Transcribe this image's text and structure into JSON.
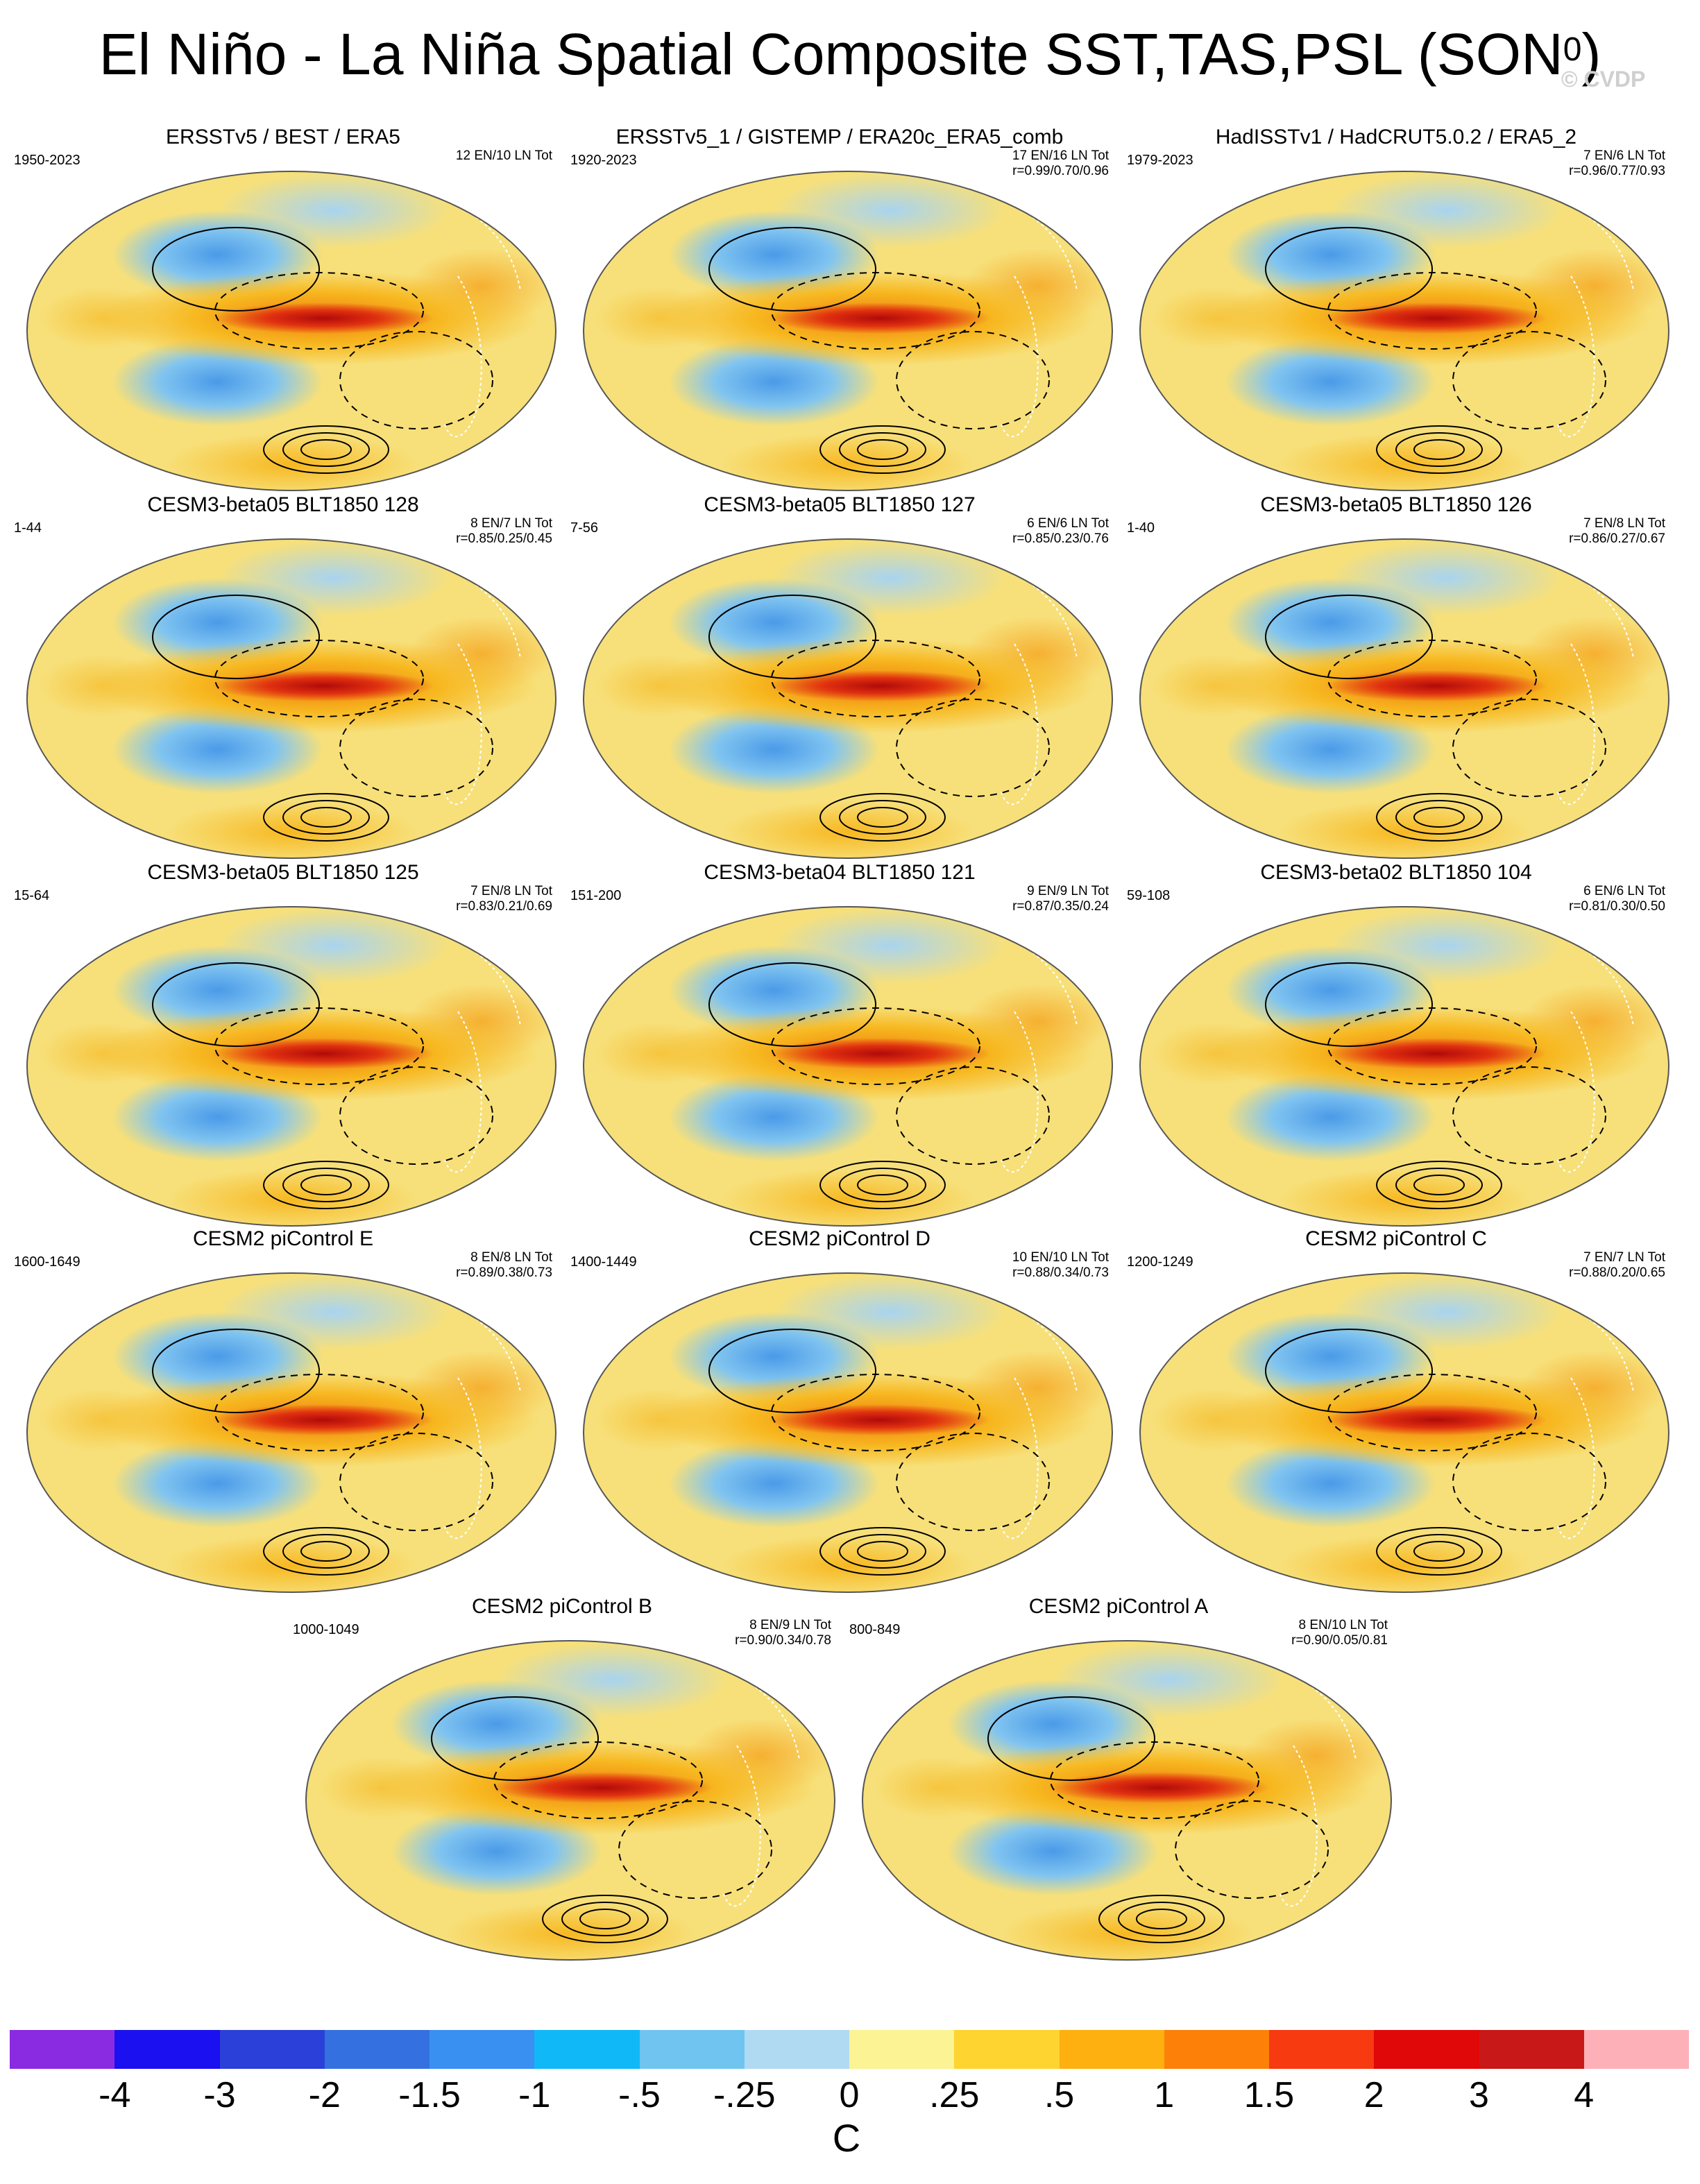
{
  "title": {
    "text": "El Niño - La Niña Spatial Composite SST,TAS,PSL (SON",
    "superscript": "0",
    "close": ")"
  },
  "watermark": "© CVDP",
  "panels": [
    {
      "title": "ERSSTv5 / BEST / ERA5",
      "period": "1950-2023",
      "counts": "12 EN/10 LN Tot",
      "corr": ""
    },
    {
      "title": "ERSSTv5_1 / GISTEMP / ERA20c_ERA5_comb",
      "period": "1920-2023",
      "counts": "17 EN/16 LN Tot",
      "corr": "r=0.99/0.70/0.96"
    },
    {
      "title": "HadISSTv1 / HadCRUT5.0.2 / ERA5_2",
      "period": "1979-2023",
      "counts": "7 EN/6 LN Tot",
      "corr": "r=0.96/0.77/0.93"
    },
    {
      "title": "CESM3-beta05 BLT1850 128",
      "period": "1-44",
      "counts": "8 EN/7 LN Tot",
      "corr": "r=0.85/0.25/0.45"
    },
    {
      "title": "CESM3-beta05 BLT1850 127",
      "period": "7-56",
      "counts": "6 EN/6 LN Tot",
      "corr": "r=0.85/0.23/0.76"
    },
    {
      "title": "CESM3-beta05 BLT1850 126",
      "period": "1-40",
      "counts": "7 EN/8 LN Tot",
      "corr": "r=0.86/0.27/0.67"
    },
    {
      "title": "CESM3-beta05 BLT1850 125",
      "period": "15-64",
      "counts": "7 EN/8 LN Tot",
      "corr": "r=0.83/0.21/0.69"
    },
    {
      "title": "CESM3-beta04 BLT1850 121",
      "period": "151-200",
      "counts": "9 EN/9 LN Tot",
      "corr": "r=0.87/0.35/0.24"
    },
    {
      "title": "CESM3-beta02 BLT1850 104",
      "period": "59-108",
      "counts": "6 EN/6 LN Tot",
      "corr": "r=0.81/0.30/0.50"
    },
    {
      "title": "CESM2 piControl E",
      "period": "1600-1649",
      "counts": "8 EN/8 LN Tot",
      "corr": "r=0.89/0.38/0.73"
    },
    {
      "title": "CESM2 piControl D",
      "period": "1400-1449",
      "counts": "10 EN/10 LN Tot",
      "corr": "r=0.88/0.34/0.73"
    },
    {
      "title": "CESM2 piControl C",
      "period": "1200-1249",
      "counts": "7 EN/7 LN Tot",
      "corr": "r=0.88/0.20/0.65"
    },
    {
      "title": "CESM2 piControl B",
      "period": "1000-1049",
      "counts": "8 EN/9 LN Tot",
      "corr": "r=0.90/0.34/0.78"
    },
    {
      "title": "CESM2 piControl A",
      "period": "800-849",
      "counts": "8 EN/10 LN Tot",
      "corr": "r=0.90/0.05/0.81"
    }
  ],
  "colorbar": {
    "colors": [
      "#8a2be2",
      "#1a10f0",
      "#2a40d8",
      "#3570e0",
      "#3a90f0",
      "#10b8f8",
      "#70c4f0",
      "#b0daf2",
      "#fbf394",
      "#fdd430",
      "#fdb010",
      "#fd8008",
      "#f83a10",
      "#e00808",
      "#c81818",
      "#fdb0b8"
    ],
    "ticks": [
      "-4",
      "-3",
      "-2",
      "-1.5",
      "-1",
      "-.5",
      "-.25",
      "0",
      ".25",
      ".5",
      "1",
      "1.5",
      "2",
      "3",
      "4"
    ],
    "unit": "C"
  }
}
